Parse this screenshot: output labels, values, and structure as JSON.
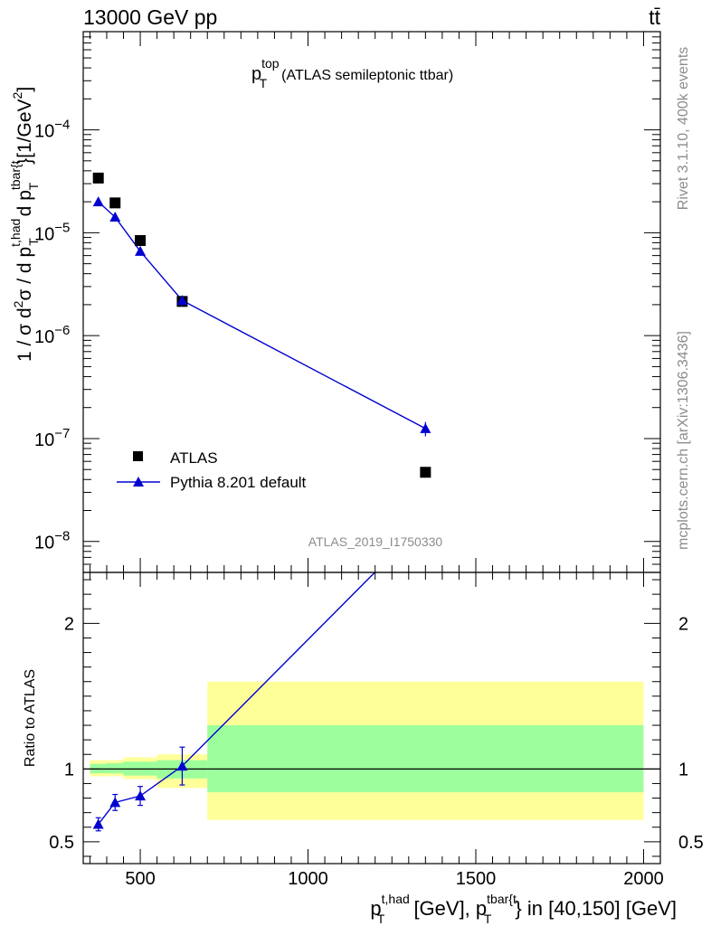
{
  "header": {
    "left": "13000 GeV pp",
    "right": "tt̄"
  },
  "side": {
    "top": "Rivet 3.1.10,  400k events",
    "bottom": "mcplots.cern.ch [arXiv:1306.3436]"
  },
  "chart_data": [
    {
      "type": "scatter",
      "panel": "main",
      "title_main": "p",
      "title_sup": "top",
      "title_sub": "T",
      "title_rest": "(ATLAS semileptonic ttbar)",
      "watermark": "ATLAS_2019_I1750330",
      "ylabel": {
        "a": "1 / σ d",
        "a_sup": "2",
        "b": "σ / d p",
        "b_sup": "t,had",
        "b_sub": "T",
        "c": " d p",
        "c_sup": "tbar{t",
        "c_sub": "T",
        "d": "}[1/GeV",
        "d_sup": "2",
        "e": "]"
      },
      "y_scale": "log",
      "ylim": [
        5e-09,
        0.0009
      ],
      "xlim": [
        330,
        2050
      ],
      "y_ticks": [
        {
          "value": 0.0001,
          "base": "10",
          "exp": "−4"
        },
        {
          "value": 1e-05,
          "base": "10",
          "exp": "−5"
        },
        {
          "value": 1e-06,
          "base": "10",
          "exp": "−6"
        },
        {
          "value": 1e-07,
          "base": "10",
          "exp": "−7"
        },
        {
          "value": 1e-08,
          "base": "10",
          "exp": "−8"
        }
      ],
      "legend_position": "bottom-left",
      "series": [
        {
          "name": "ATLAS",
          "marker": "square",
          "color": "#000000",
          "points": [
            {
              "x": 375,
              "y": 3.4e-05
            },
            {
              "x": 425,
              "y": 1.95e-05
            },
            {
              "x": 500,
              "y": 8.4e-06
            },
            {
              "x": 625,
              "y": 2.15e-06
            },
            {
              "x": 1350,
              "y": 4.7e-08
            }
          ]
        },
        {
          "name": "Pythia 8.201 default",
          "marker": "triangle",
          "color": "#0000d0",
          "line": true,
          "points": [
            {
              "x": 375,
              "y": 2e-05,
              "err": 6e-07
            },
            {
              "x": 425,
              "y": 1.42e-05,
              "err": 7e-07
            },
            {
              "x": 500,
              "y": 6.6e-06,
              "err": 4e-07
            },
            {
              "x": 625,
              "y": 2.2e-06,
              "err": 2.5e-07
            },
            {
              "x": 1350,
              "y": 1.25e-07,
              "err": 2e-08
            }
          ]
        }
      ]
    },
    {
      "type": "line",
      "panel": "ratio",
      "ylabel": "Ratio to ATLAS",
      "xlabel": {
        "a": "p",
        "a_sup": "t,had",
        "a_sub": "T",
        "b": " [GeV], p",
        "b_sup": "tbar{t",
        "b_sub": "T",
        "c": "} in [40,150] [GeV]"
      },
      "xlim": [
        330,
        2050
      ],
      "ylim": [
        0.35,
        2.35
      ],
      "x_ticks": [
        500,
        1000,
        1500,
        2000
      ],
      "y_ticks": [
        0.5,
        1,
        2
      ],
      "reference_line": 1,
      "bands": [
        {
          "x0": 350,
          "x1": 400,
          "yellow": [
            0.95,
            1.06
          ],
          "green": [
            0.97,
            1.035
          ]
        },
        {
          "x0": 400,
          "x1": 450,
          "yellow": [
            0.95,
            1.06
          ],
          "green": [
            0.97,
            1.04
          ]
        },
        {
          "x0": 450,
          "x1": 550,
          "yellow": [
            0.93,
            1.08
          ],
          "green": [
            0.955,
            1.05
          ]
        },
        {
          "x0": 550,
          "x1": 700,
          "yellow": [
            0.87,
            1.1
          ],
          "green": [
            0.935,
            1.06
          ]
        },
        {
          "x0": 700,
          "x1": 2000,
          "yellow": [
            0.65,
            1.6
          ],
          "green": [
            0.84,
            1.3
          ]
        }
      ],
      "series": [
        {
          "name": "Pythia 8.201 default",
          "color": "#0000d0",
          "points": [
            {
              "x": 375,
              "y": 0.62,
              "err": 0.045
            },
            {
              "x": 425,
              "y": 0.77,
              "err": 0.055
            },
            {
              "x": 500,
              "y": 0.815,
              "err": 0.065
            },
            {
              "x": 625,
              "y": 1.02,
              "err": 0.13
            }
          ],
          "line_to": {
            "x": 1350,
            "y": 2.7
          }
        }
      ]
    }
  ]
}
